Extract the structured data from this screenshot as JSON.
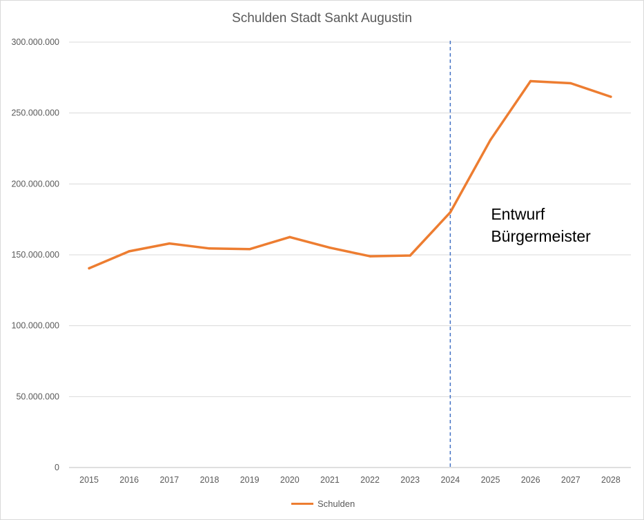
{
  "chart_data": {
    "type": "line",
    "title": "Schulden Stadt Sankt Augustin",
    "categories": [
      "2015",
      "2016",
      "2017",
      "2018",
      "2019",
      "2020",
      "2021",
      "2022",
      "2023",
      "2024",
      "2025",
      "2026",
      "2027",
      "2028"
    ],
    "series": [
      {
        "name": "Schulden",
        "color": "#ED7D31",
        "values": [
          140500000,
          152500000,
          158000000,
          154500000,
          154000000,
          162500000,
          155000000,
          149000000,
          149500000,
          180000000,
          231000000,
          272500000,
          271000000,
          261500000
        ]
      }
    ],
    "ylim": [
      0,
      300000000
    ],
    "yticks": [
      0,
      50000000,
      100000000,
      150000000,
      200000000,
      250000000,
      300000000
    ],
    "ytick_labels": [
      "0",
      "50.000.000",
      "100.000.000",
      "150.000.000",
      "200.000.000",
      "250.000.000",
      "300.000.000"
    ],
    "grid": true,
    "legend_position": "bottom",
    "marker": {
      "category": "2024",
      "style": "dashed",
      "color": "#4472C4"
    },
    "annotation": {
      "lines": [
        "Entwurf",
        "Bürgermeister"
      ]
    }
  }
}
